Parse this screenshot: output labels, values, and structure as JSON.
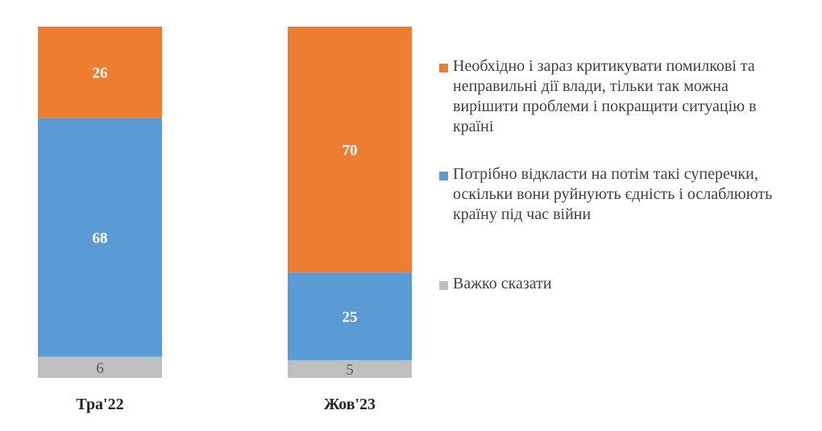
{
  "chart_data": {
    "type": "bar",
    "stacked": true,
    "normalized_percent": true,
    "categories": [
      "Тра'22",
      "Жов'23"
    ],
    "series": [
      {
        "name": "Важко сказати",
        "color": "#bfbfbf",
        "values": [
          6,
          5
        ]
      },
      {
        "name": "Потрібно відкласти на потім такі суперечки, оскільки вони руйнують єдність і ослаблюють країну під час війни",
        "color": "#5b9bd5",
        "values": [
          68,
          25
        ]
      },
      {
        "name": "Необхідно і зараз критикувати помилкові та неправильні дії влади, тільки так можна вирішити проблеми і покращити ситуацію в країні",
        "color": "#ed7d31",
        "values": [
          26,
          70
        ]
      }
    ],
    "data_labels": true,
    "legend_position": "right",
    "legend_order": [
      2,
      1,
      0
    ],
    "title": "",
    "xlabel": "",
    "ylabel": "",
    "ylim": [
      0,
      100
    ],
    "grid": false
  }
}
